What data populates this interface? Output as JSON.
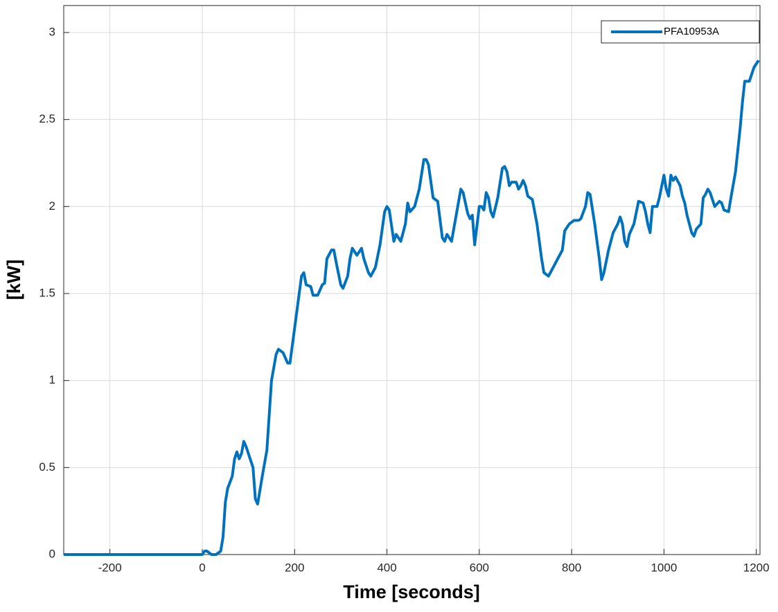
{
  "chart_data": {
    "type": "line",
    "xlabel": "Time  [seconds]",
    "ylabel": "[kW]",
    "xlim": [
      -300,
      1208
    ],
    "ylim": [
      0,
      3.155
    ],
    "xticks": [
      -200,
      0,
      200,
      400,
      600,
      800,
      1000,
      1200
    ],
    "yticks": [
      0,
      0.5,
      1,
      1.5,
      2,
      2.5,
      3
    ],
    "grid": true,
    "legend": "upper right",
    "x": [
      -300,
      0,
      5,
      10,
      20,
      30,
      40,
      45,
      50,
      55,
      65,
      70,
      75,
      80,
      85,
      90,
      95,
      100,
      110,
      115,
      120,
      130,
      140,
      145,
      150,
      160,
      165,
      175,
      185,
      190,
      200,
      210,
      215,
      220,
      225,
      235,
      240,
      250,
      260,
      265,
      270,
      280,
      285,
      290,
      300,
      305,
      315,
      320,
      325,
      335,
      345,
      350,
      360,
      365,
      375,
      385,
      395,
      400,
      405,
      415,
      420,
      425,
      430,
      440,
      445,
      450,
      460,
      470,
      480,
      485,
      490,
      500,
      510,
      520,
      525,
      530,
      540,
      550,
      560,
      565,
      575,
      580,
      585,
      590,
      600,
      605,
      610,
      615,
      620,
      625,
      630,
      640,
      650,
      655,
      660,
      665,
      670,
      680,
      685,
      690,
      695,
      700,
      705,
      715,
      725,
      735,
      740,
      750,
      760,
      770,
      780,
      785,
      795,
      805,
      815,
      820,
      830,
      835,
      840,
      850,
      860,
      865,
      870,
      880,
      890,
      900,
      905,
      910,
      915,
      920,
      925,
      935,
      945,
      955,
      960,
      965,
      970,
      975,
      985,
      990,
      1000,
      1005,
      1010,
      1015,
      1020,
      1025,
      1035,
      1040,
      1045,
      1050,
      1060,
      1065,
      1070,
      1080,
      1085,
      1090,
      1095,
      1100,
      1110,
      1120,
      1125,
      1130,
      1140,
      1145,
      1155,
      1165,
      1170,
      1175,
      1185,
      1195,
      1205
    ],
    "series": [
      {
        "name": "PFA10953A",
        "color": "#0072bd",
        "values": [
          0,
          0,
          0.02,
          0.02,
          0,
          0,
          0.02,
          0.1,
          0.3,
          0.38,
          0.45,
          0.55,
          0.59,
          0.55,
          0.58,
          0.65,
          0.62,
          0.58,
          0.5,
          0.32,
          0.29,
          0.45,
          0.6,
          0.8,
          1.0,
          1.15,
          1.18,
          1.16,
          1.1,
          1.1,
          1.3,
          1.5,
          1.6,
          1.62,
          1.55,
          1.54,
          1.49,
          1.49,
          1.55,
          1.56,
          1.7,
          1.75,
          1.75,
          1.68,
          1.55,
          1.53,
          1.6,
          1.7,
          1.76,
          1.72,
          1.76,
          1.7,
          1.62,
          1.6,
          1.65,
          1.78,
          1.97,
          2.0,
          1.98,
          1.8,
          1.84,
          1.82,
          1.8,
          1.9,
          2.02,
          1.97,
          2.0,
          2.1,
          2.27,
          2.27,
          2.24,
          2.05,
          2.03,
          1.82,
          1.8,
          1.84,
          1.8,
          1.95,
          2.1,
          2.08,
          1.96,
          1.93,
          1.95,
          1.78,
          2.0,
          2.0,
          1.98,
          2.08,
          2.05,
          1.97,
          1.94,
          2.05,
          2.22,
          2.23,
          2.2,
          2.12,
          2.14,
          2.14,
          2.1,
          2.12,
          2.15,
          2.12,
          2.06,
          2.04,
          1.9,
          1.7,
          1.62,
          1.6,
          1.65,
          1.7,
          1.75,
          1.86,
          1.9,
          1.92,
          1.92,
          1.93,
          2.0,
          2.08,
          2.07,
          1.9,
          1.7,
          1.58,
          1.62,
          1.75,
          1.85,
          1.9,
          1.94,
          1.9,
          1.8,
          1.77,
          1.84,
          1.9,
          2.03,
          2.02,
          1.97,
          1.9,
          1.85,
          2.0,
          2.0,
          2.05,
          2.18,
          2.1,
          2.06,
          2.18,
          2.15,
          2.17,
          2.12,
          2.06,
          2.02,
          1.95,
          1.85,
          1.83,
          1.87,
          1.9,
          2.05,
          2.07,
          2.1,
          2.08,
          2.0,
          2.03,
          2.02,
          1.98,
          1.97,
          2.05,
          2.2,
          2.45,
          2.6,
          2.72,
          2.72,
          2.8,
          2.84
        ]
      }
    ]
  }
}
